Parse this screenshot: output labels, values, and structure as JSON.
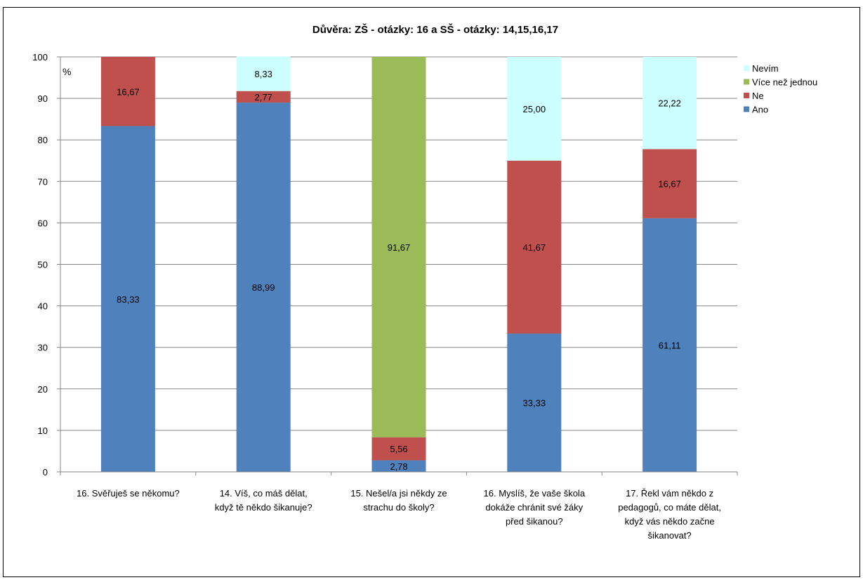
{
  "chart_data": {
    "type": "bar",
    "stacked": true,
    "title": "Důvěra: ZŠ - otázky: 16  a SŠ - otázky: 14,15,16,17",
    "xlabel": "",
    "ylabel": "%",
    "ylim": [
      0,
      100
    ],
    "yticks": [
      "0",
      "10",
      "20",
      "30",
      "40",
      "50",
      "60",
      "70",
      "80",
      "90",
      "100"
    ],
    "grid": true,
    "legend_position": "right",
    "categories": [
      [
        "16. Svěřuješ se někomu?"
      ],
      [
        "14. Víš, co máš dělat,",
        "když tě někdo šikanuje?"
      ],
      [
        "15. Nešel/a jsi někdy ze",
        "strachu do školy?"
      ],
      [
        "16. Myslíš, že vaše škola",
        "dokáže chránit své žáky",
        "před šikanou?"
      ],
      [
        "17. Řekl vám někdo z",
        "pedagogů, co máte dělat,",
        "když vás někdo začne",
        "šikanovat?"
      ]
    ],
    "series": [
      {
        "name": "Ano",
        "color": "#4F81BD",
        "values": [
          83.33,
          88.99,
          2.78,
          33.33,
          61.11
        ],
        "labels": [
          "83,33",
          "88,99",
          "2,78",
          "33,33",
          "61,11"
        ]
      },
      {
        "name": "Ne",
        "color": "#C0504D",
        "values": [
          16.67,
          2.77,
          5.56,
          41.67,
          16.67
        ],
        "labels": [
          "16,67",
          "2,77",
          "5,56",
          "41,67",
          "16,67"
        ]
      },
      {
        "name": "Více než jednou",
        "color": "#9BBB59",
        "values": [
          0,
          0,
          91.67,
          0,
          0
        ],
        "labels": [
          "",
          "",
          "91,67",
          "",
          ""
        ]
      },
      {
        "name": "Nevím",
        "color": "#CCFFFF",
        "values": [
          0,
          8.33,
          0,
          25.0,
          22.22
        ],
        "labels": [
          "",
          "8,33",
          "",
          "25,00",
          "22,22"
        ]
      }
    ],
    "legend_order": [
      "Nevím",
      "Více než jednou",
      "Ne",
      "Ano"
    ]
  }
}
